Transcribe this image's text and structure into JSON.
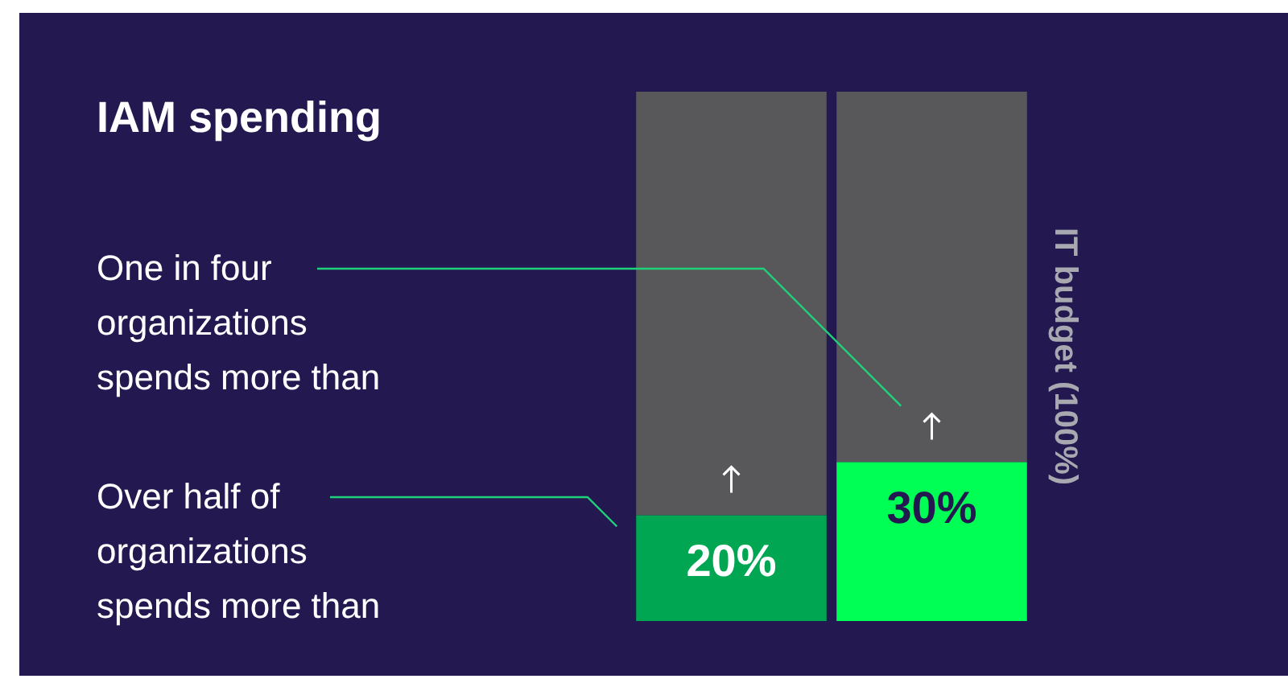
{
  "chart_data": {
    "type": "bar",
    "title": "IAM spending",
    "stacked": true,
    "categories": [
      null,
      null
    ],
    "series": [
      {
        "colors": [
          "#00a652",
          "#00ff55"
        ],
        "values": [
          20,
          30
        ],
        "value_labels": [
          "20%",
          "30%"
        ]
      },
      {
        "color": "#58585b",
        "values": [
          80,
          70
        ]
      }
    ],
    "ylim": [
      0,
      100
    ],
    "ylabel": "IT budget (100%)",
    "tick_labels": false,
    "grid": false,
    "legend": false,
    "annotations": [
      "One in four organizations spends more than",
      "Over half of organizations spends more than"
    ]
  }
}
